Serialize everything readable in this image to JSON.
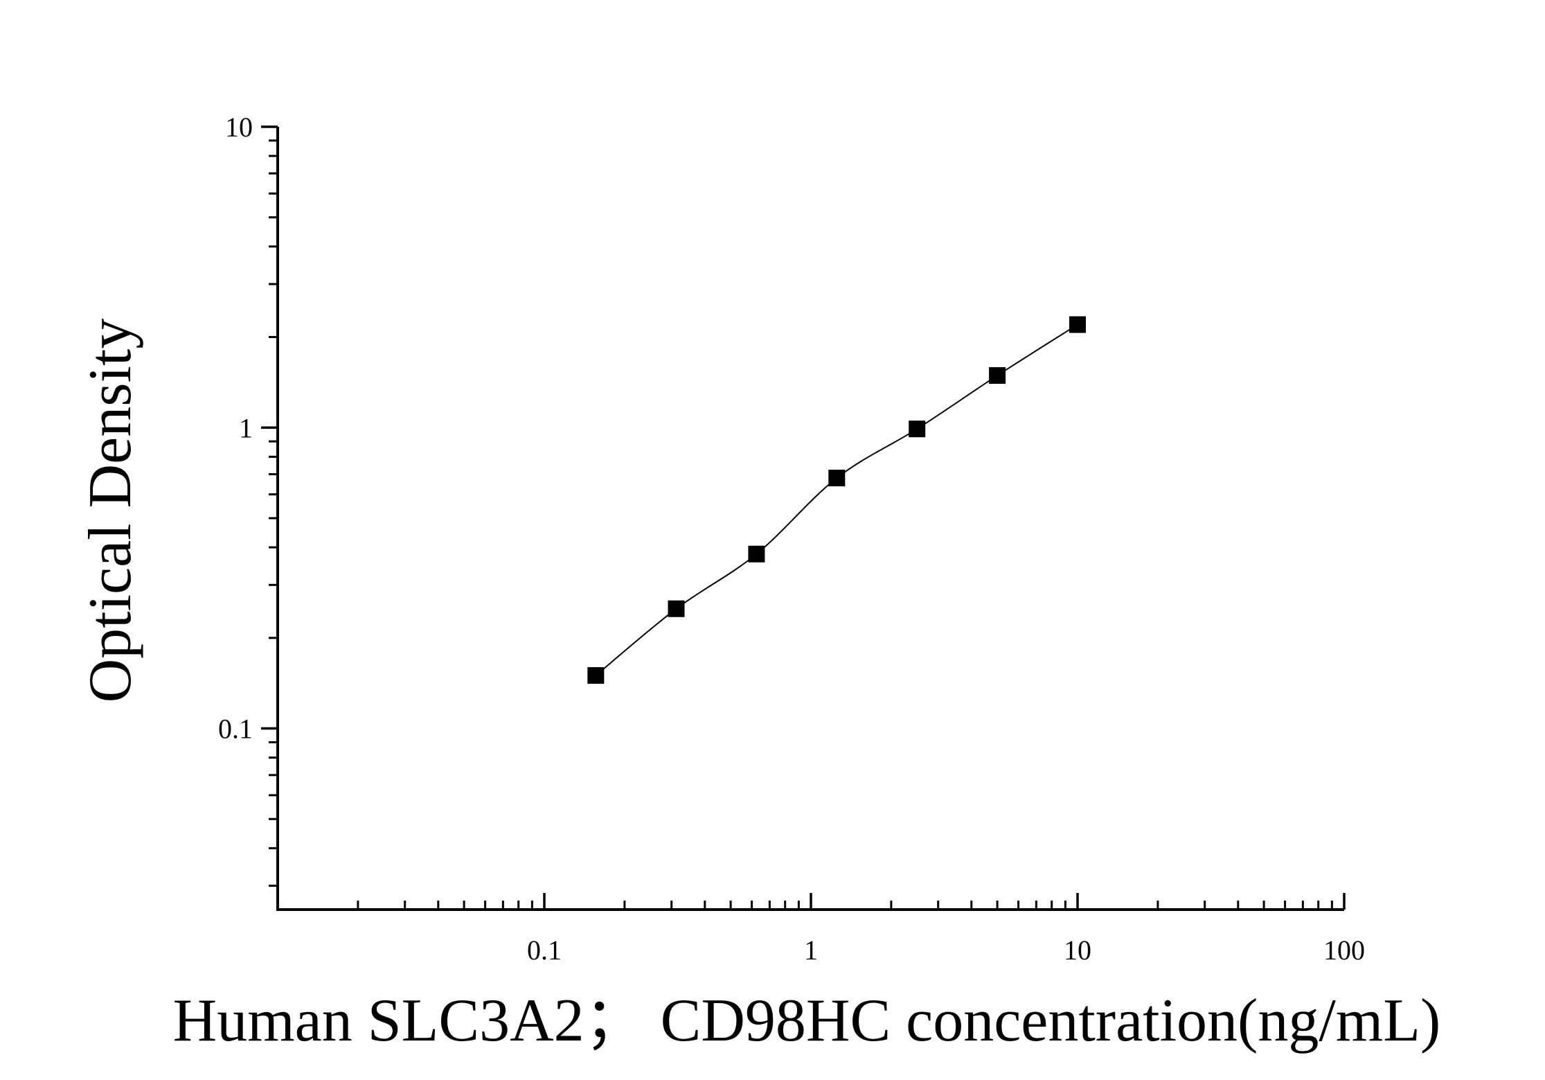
{
  "chart_data": {
    "type": "scatter",
    "title": "",
    "xlabel": "Human SLC3A2；  CD98HC concentration(ng/mL)",
    "ylabel": "Optical Density",
    "x_scale": "log",
    "y_scale": "log",
    "xlim": [
      0.01,
      100
    ],
    "ylim": [
      0.025,
      10
    ],
    "x_tick_labels": [
      "0.1",
      "1",
      "10",
      "100"
    ],
    "y_tick_labels": [
      "0.1",
      "1",
      "10"
    ],
    "grid": false,
    "legend": "none",
    "series": [
      {
        "marker": "square",
        "fit_line": true,
        "points": [
          {
            "x": 0.156,
            "y": 0.15
          },
          {
            "x": 0.3125,
            "y": 0.25
          },
          {
            "x": 0.625,
            "y": 0.38
          },
          {
            "x": 1.25,
            "y": 0.68
          },
          {
            "x": 2.5,
            "y": 0.99
          },
          {
            "x": 5,
            "y": 1.49
          },
          {
            "x": 10,
            "y": 2.2
          }
        ]
      }
    ],
    "colors": {
      "axis": "#000000",
      "marker": "#000000",
      "line": "#000000",
      "background": "#ffffff"
    }
  }
}
